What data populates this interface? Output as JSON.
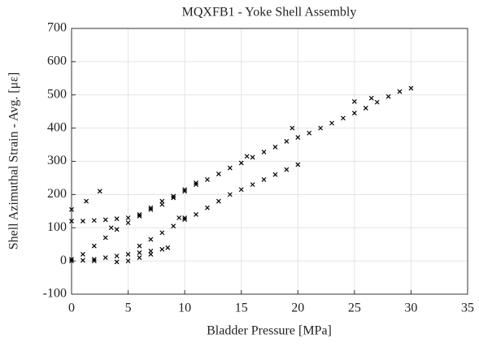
{
  "chart_data": {
    "type": "scatter",
    "title": "MQXFB1 - Yoke Shell Assembly",
    "x_label": "Bladder Pressure [MPa]",
    "y_label": "Shell Azimuthal Strain - Avg. [με]",
    "xlim": [
      0,
      35
    ],
    "ylim": [
      -100,
      700
    ],
    "xticks": [
      0,
      5,
      10,
      15,
      20,
      25,
      30,
      35
    ],
    "yticks": [
      -100,
      0,
      100,
      200,
      300,
      400,
      500,
      600,
      700
    ],
    "grid": true,
    "series": [
      {
        "color": "#000000",
        "x": [
          1,
          2,
          3,
          4,
          5,
          6,
          7,
          8,
          9,
          10,
          11,
          12,
          13,
          14,
          15,
          16,
          17,
          18,
          19,
          20,
          21,
          22,
          23,
          24,
          25,
          26,
          27,
          28,
          29,
          30,
          0,
          1,
          2,
          3,
          4,
          5,
          6,
          7,
          8,
          9,
          10,
          11,
          6,
          7,
          8,
          9,
          10,
          11,
          12,
          13,
          14,
          15,
          16,
          17,
          18,
          19,
          20,
          9.5,
          10,
          0,
          1,
          2,
          3,
          4,
          5,
          6,
          7,
          8,
          8.5,
          0,
          2,
          4,
          5,
          6,
          7,
          0,
          1.3,
          2.5,
          3.5,
          15.5,
          19.5,
          25,
          26.5
        ],
        "y": [
          20,
          45,
          70,
          95,
          115,
          135,
          160,
          180,
          195,
          215,
          230,
          245,
          262,
          280,
          295,
          312,
          328,
          343,
          360,
          372,
          385,
          400,
          415,
          430,
          445,
          460,
          478,
          495,
          510,
          520,
          120,
          120,
          122,
          124,
          127,
          130,
          140,
          155,
          170,
          190,
          210,
          235,
          45,
          65,
          85,
          105,
          125,
          140,
          160,
          180,
          200,
          215,
          230,
          245,
          260,
          275,
          290,
          130,
          130,
          0,
          2,
          5,
          10,
          15,
          20,
          25,
          30,
          35,
          40,
          5,
          0,
          -3,
          0,
          10,
          20,
          155,
          180,
          210,
          100,
          315,
          400,
          480,
          490
        ]
      }
    ]
  }
}
